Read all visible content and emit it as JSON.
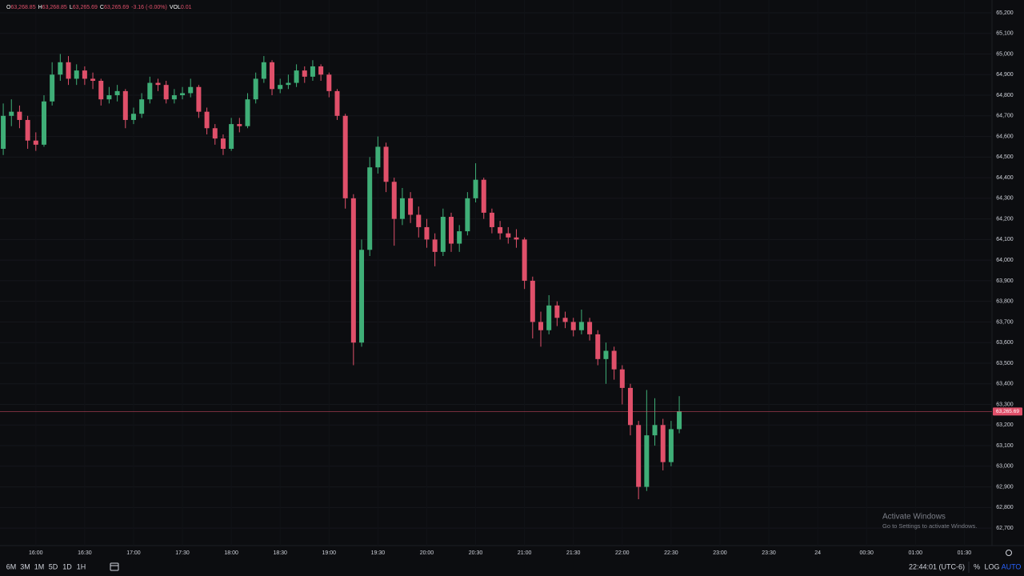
{
  "ohlc_header": {
    "items": [
      {
        "key": "O",
        "value": "63,268.85"
      },
      {
        "key": "H",
        "value": "63,268.85"
      },
      {
        "key": "L",
        "value": "63,265.69"
      },
      {
        "key": "C",
        "value": "63,265.69"
      }
    ],
    "change": "-3.16 (-0.00%)",
    "volume_key": "VOL",
    "volume": "0.01"
  },
  "chart_data": {
    "type": "candlestick",
    "up_color": "#3fae77",
    "down_color": "#e0506a",
    "grid": true,
    "x": [
      "15:40",
      "15:45",
      "15:50",
      "15:55",
      "16:00",
      "16:05",
      "16:10",
      "16:15",
      "16:20",
      "16:25",
      "16:30",
      "16:35",
      "16:40",
      "16:45",
      "16:50",
      "16:55",
      "17:00",
      "17:05",
      "17:10",
      "17:15",
      "17:20",
      "17:25",
      "17:30",
      "17:35",
      "17:40",
      "17:45",
      "17:50",
      "17:55",
      "18:00",
      "18:05",
      "18:10",
      "18:15",
      "18:20",
      "18:25",
      "18:30",
      "18:35",
      "18:40",
      "18:45",
      "18:50",
      "18:55",
      "19:00",
      "19:05",
      "19:10",
      "19:15",
      "19:20",
      "19:25",
      "19:30",
      "19:35",
      "19:40",
      "19:45",
      "19:50",
      "19:55",
      "20:00",
      "20:05",
      "20:10",
      "20:15",
      "20:20",
      "20:25",
      "20:30",
      "20:35",
      "20:40",
      "20:45",
      "20:50",
      "20:55",
      "21:00",
      "21:05",
      "21:10",
      "21:15",
      "21:20",
      "21:25",
      "21:30",
      "21:35",
      "21:40",
      "21:45",
      "21:50",
      "21:55",
      "22:00",
      "22:05",
      "22:10",
      "22:15",
      "22:20",
      "22:25",
      "22:30",
      "22:35"
    ],
    "open": [
      64540,
      64700,
      64720,
      64680,
      64580,
      64560,
      64770,
      64900,
      64960,
      64880,
      64920,
      64880,
      64870,
      64780,
      64800,
      64820,
      64680,
      64710,
      64780,
      64860,
      64850,
      64780,
      64800,
      64810,
      64840,
      64720,
      64640,
      64590,
      64540,
      64660,
      64650,
      64780,
      64880,
      64960,
      64830,
      64850,
      64860,
      64920,
      64890,
      64940,
      64900,
      64820,
      64700,
      64300,
      63600,
      64050,
      64450,
      64550,
      64380,
      64200,
      64300,
      64220,
      64160,
      64100,
      64040,
      64210,
      64080,
      64140,
      64300,
      64390,
      64230,
      64160,
      64130,
      64110,
      64100,
      63900,
      63700,
      63660,
      63780,
      63720,
      63700,
      63660,
      63700,
      63640,
      63520,
      63560,
      63470,
      63380,
      63200,
      62900,
      63150,
      63200,
      63020,
      63180
    ],
    "high": [
      64760,
      64780,
      64750,
      64700,
      64620,
      64800,
      64960,
      65000,
      64990,
      64950,
      64940,
      64910,
      64880,
      64840,
      64850,
      64830,
      64740,
      64810,
      64890,
      64880,
      64870,
      64830,
      64840,
      64880,
      64850,
      64740,
      64660,
      64610,
      64690,
      64690,
      64810,
      64910,
      64990,
      64970,
      64880,
      64900,
      64950,
      64940,
      64970,
      64950,
      64910,
      64830,
      64710,
      64320,
      64100,
      64500,
      64600,
      64570,
      64400,
      64350,
      64330,
      64260,
      64200,
      64130,
      64250,
      64230,
      64170,
      64330,
      64470,
      64400,
      64250,
      64190,
      64160,
      64150,
      64110,
      63920,
      63750,
      63830,
      63800,
      63750,
      63720,
      63760,
      63720,
      63660,
      63600,
      63580,
      63490,
      63400,
      63220,
      63370,
      63330,
      63230,
      63220,
      63340
    ],
    "low": [
      64510,
      64650,
      64640,
      64540,
      64530,
      64550,
      64750,
      64870,
      64850,
      64850,
      64850,
      64830,
      64750,
      64760,
      64770,
      64640,
      64660,
      64690,
      64760,
      64820,
      64760,
      64760,
      64780,
      64790,
      64690,
      64610,
      64560,
      64510,
      64530,
      64620,
      64640,
      64760,
      64860,
      64800,
      64810,
      64830,
      64840,
      64860,
      64870,
      64870,
      64790,
      64680,
      64250,
      63490,
      63580,
      64020,
      64420,
      64330,
      64070,
      64170,
      64180,
      64110,
      64060,
      63970,
      64020,
      64040,
      64040,
      64120,
      64280,
      64200,
      64130,
      64100,
      64080,
      64060,
      63860,
      63620,
      63580,
      63640,
      63680,
      63670,
      63630,
      63640,
      63610,
      63490,
      63400,
      63420,
      63300,
      63150,
      62840,
      62880,
      63100,
      62980,
      63000,
      63160
    ],
    "close": [
      64700,
      64720,
      64680,
      64580,
      64560,
      64770,
      64900,
      64960,
      64880,
      64920,
      64880,
      64870,
      64780,
      64800,
      64820,
      64680,
      64710,
      64780,
      64860,
      64850,
      64780,
      64800,
      64810,
      64840,
      64720,
      64640,
      64590,
      64540,
      64660,
      64650,
      64780,
      64880,
      64960,
      64830,
      64850,
      64860,
      64920,
      64890,
      64940,
      64900,
      64820,
      64700,
      64300,
      63600,
      64050,
      64450,
      64550,
      64380,
      64200,
      64300,
      64220,
      64160,
      64100,
      64040,
      64210,
      64080,
      64140,
      64300,
      64390,
      64230,
      64160,
      64130,
      64110,
      64100,
      63900,
      63700,
      63660,
      63780,
      63720,
      63700,
      63660,
      63700,
      63640,
      63520,
      63560,
      63470,
      63380,
      63200,
      62900,
      63150,
      63200,
      63020,
      63180,
      63265.69
    ],
    "xlim": [
      "15:38",
      "01:47"
    ],
    "xticks": [
      "16:00",
      "16:30",
      "17:00",
      "17:30",
      "18:00",
      "18:30",
      "19:00",
      "19:30",
      "20:00",
      "20:30",
      "21:00",
      "21:30",
      "22:00",
      "22:30",
      "23:00",
      "23:30",
      "24",
      "00:30",
      "01:00",
      "01:30"
    ],
    "ylim": [
      62615,
      65262
    ],
    "yticks": [
      {
        "value": 62700,
        "label": "62,700"
      },
      {
        "value": 62800,
        "label": "62,800"
      },
      {
        "value": 62900,
        "label": "62,900"
      },
      {
        "value": 63000,
        "label": "63,000"
      },
      {
        "value": 63100,
        "label": "63,100"
      },
      {
        "value": 63200,
        "label": "63,200"
      },
      {
        "value": 63300,
        "label": "63,300"
      },
      {
        "value": 63400,
        "label": "63,400"
      },
      {
        "value": 63500,
        "label": "63,500"
      },
      {
        "value": 63600,
        "label": "63,600"
      },
      {
        "value": 63700,
        "label": "63,700"
      },
      {
        "value": 63800,
        "label": "63,800"
      },
      {
        "value": 63900,
        "label": "63,900"
      },
      {
        "value": 64000,
        "label": "64,000"
      },
      {
        "value": 64100,
        "label": "64,100"
      },
      {
        "value": 64200,
        "label": "64,200"
      },
      {
        "value": 64300,
        "label": "64,300"
      },
      {
        "value": 64400,
        "label": "64,400"
      },
      {
        "value": 64500,
        "label": "64,500"
      },
      {
        "value": 64600,
        "label": "64,600"
      },
      {
        "value": 64700,
        "label": "64,700"
      },
      {
        "value": 64800,
        "label": "64,800"
      },
      {
        "value": 64900,
        "label": "64,900"
      },
      {
        "value": 65000,
        "label": "65,000"
      },
      {
        "value": 65100,
        "label": "65,100"
      },
      {
        "value": 65200,
        "label": "65,200"
      }
    ],
    "last_price": {
      "value": 63265.69,
      "label": "63,265.69"
    }
  },
  "toolbar": {
    "ranges": [
      "6M",
      "3M",
      "1M",
      "5D",
      "1D",
      "1H"
    ],
    "clock": "22:44:01 (UTC-6)",
    "options": [
      "%",
      "LOG",
      "AUTO"
    ]
  },
  "watermark": {
    "title": "Activate Windows",
    "subtitle": "Go to Settings to activate Windows."
  }
}
